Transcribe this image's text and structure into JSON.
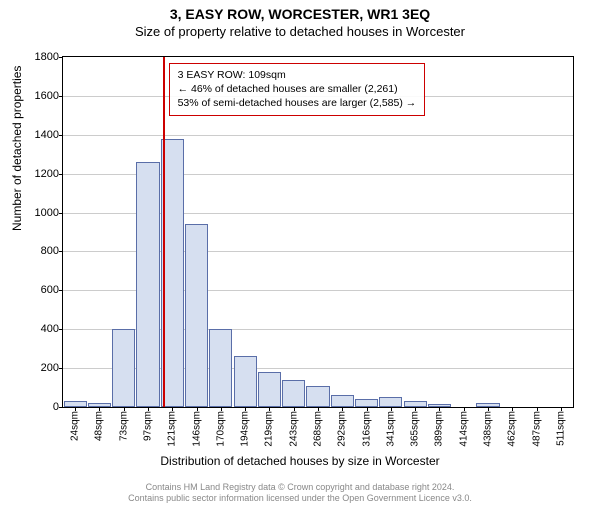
{
  "title": "3, EASY ROW, WORCESTER, WR1 3EQ",
  "subtitle": "Size of property relative to detached houses in Worcester",
  "ylabel": "Number of detached properties",
  "xlabel": "Distribution of detached houses by size in Worcester",
  "chart": {
    "type": "histogram",
    "ylim": [
      0,
      1800
    ],
    "ytick_step": 200,
    "bar_fill": "#d6dff0",
    "bar_stroke": "#5a6ea8",
    "grid_color": "#cccccc",
    "background_color": "#ffffff",
    "marker_color": "#cc0000",
    "marker_x_index": 3.6,
    "categories": [
      "24sqm",
      "48sqm",
      "73sqm",
      "97sqm",
      "121sqm",
      "146sqm",
      "170sqm",
      "194sqm",
      "219sqm",
      "243sqm",
      "268sqm",
      "292sqm",
      "316sqm",
      "341sqm",
      "365sqm",
      "389sqm",
      "414sqm",
      "438sqm",
      "462sqm",
      "487sqm",
      "511sqm"
    ],
    "values": [
      30,
      20,
      400,
      1260,
      1380,
      940,
      400,
      260,
      180,
      140,
      110,
      60,
      40,
      50,
      30,
      15,
      0,
      20,
      0,
      0,
      0
    ],
    "bar_width_ratio": 0.95
  },
  "annotation": {
    "line1": "3 EASY ROW: 109sqm",
    "line2": "← 46% of detached houses are smaller (2,261)",
    "line3": "53% of semi-detached houses are larger (2,585) →",
    "box_border": "#cc0000",
    "font_size": 10.5
  },
  "footer": {
    "line1": "Contains HM Land Registry data © Crown copyright and database right 2024.",
    "line2": "Contains public sector information licensed under the Open Government Licence v3.0."
  }
}
